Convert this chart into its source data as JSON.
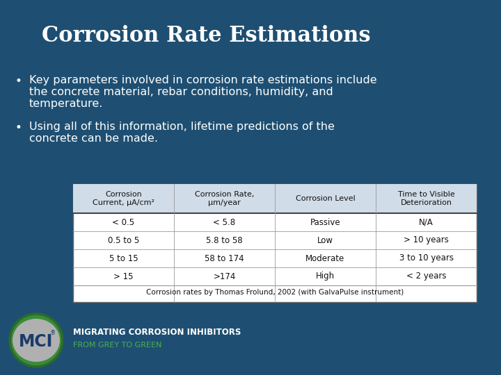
{
  "bg_color": "#1e4f72",
  "title": "Corrosion Rate Estimations",
  "title_color": "#ffffff",
  "title_fontsize": 22,
  "bullet1_line1": "Key parameters involved in corrosion rate estimations include",
  "bullet1_line2": "the concrete material, rebar conditions, humidity, and",
  "bullet1_line3": "temperature.",
  "bullet2_line1": "Using all of this information, lifetime predictions of the",
  "bullet2_line2": "concrete can be made.",
  "bullet_color": "#ffffff",
  "bullet_fontsize": 11.5,
  "table_headers": [
    "Corrosion\nCurrent, μA/cm²",
    "Corrosion Rate,\nμm/year",
    "Corrosion Level",
    "Time to Visible\nDeterioration"
  ],
  "table_data": [
    [
      "< 0.5",
      "< 5.8",
      "Passive",
      "N/A"
    ],
    [
      "0.5 to 5",
      "5.8 to 58",
      "Low",
      "> 10 years"
    ],
    [
      "5 to 15",
      "58 to 174",
      "Moderate",
      "3 to 10 years"
    ],
    [
      "> 15",
      ">174",
      "High",
      "< 2 years"
    ]
  ],
  "table_footer": "Corrosion rates by Thomas Frolund, 2002 (with GalvaPulse instrument)",
  "table_header_bg": "#d0dce8",
  "table_row_bg": "#ffffff",
  "table_font_color": "#111111",
  "table_header_fontsize": 8.0,
  "table_data_fontsize": 8.5,
  "table_footer_fontsize": 7.5,
  "brand_line1": "MIGRATING CORROSION INHIBITORS",
  "brand_line2": "FROM GREY TO GREEN",
  "brand_color1": "#ffffff",
  "brand_color2": "#4caf50",
  "brand_fontsize1": 8.5,
  "brand_fontsize2": 8.0
}
